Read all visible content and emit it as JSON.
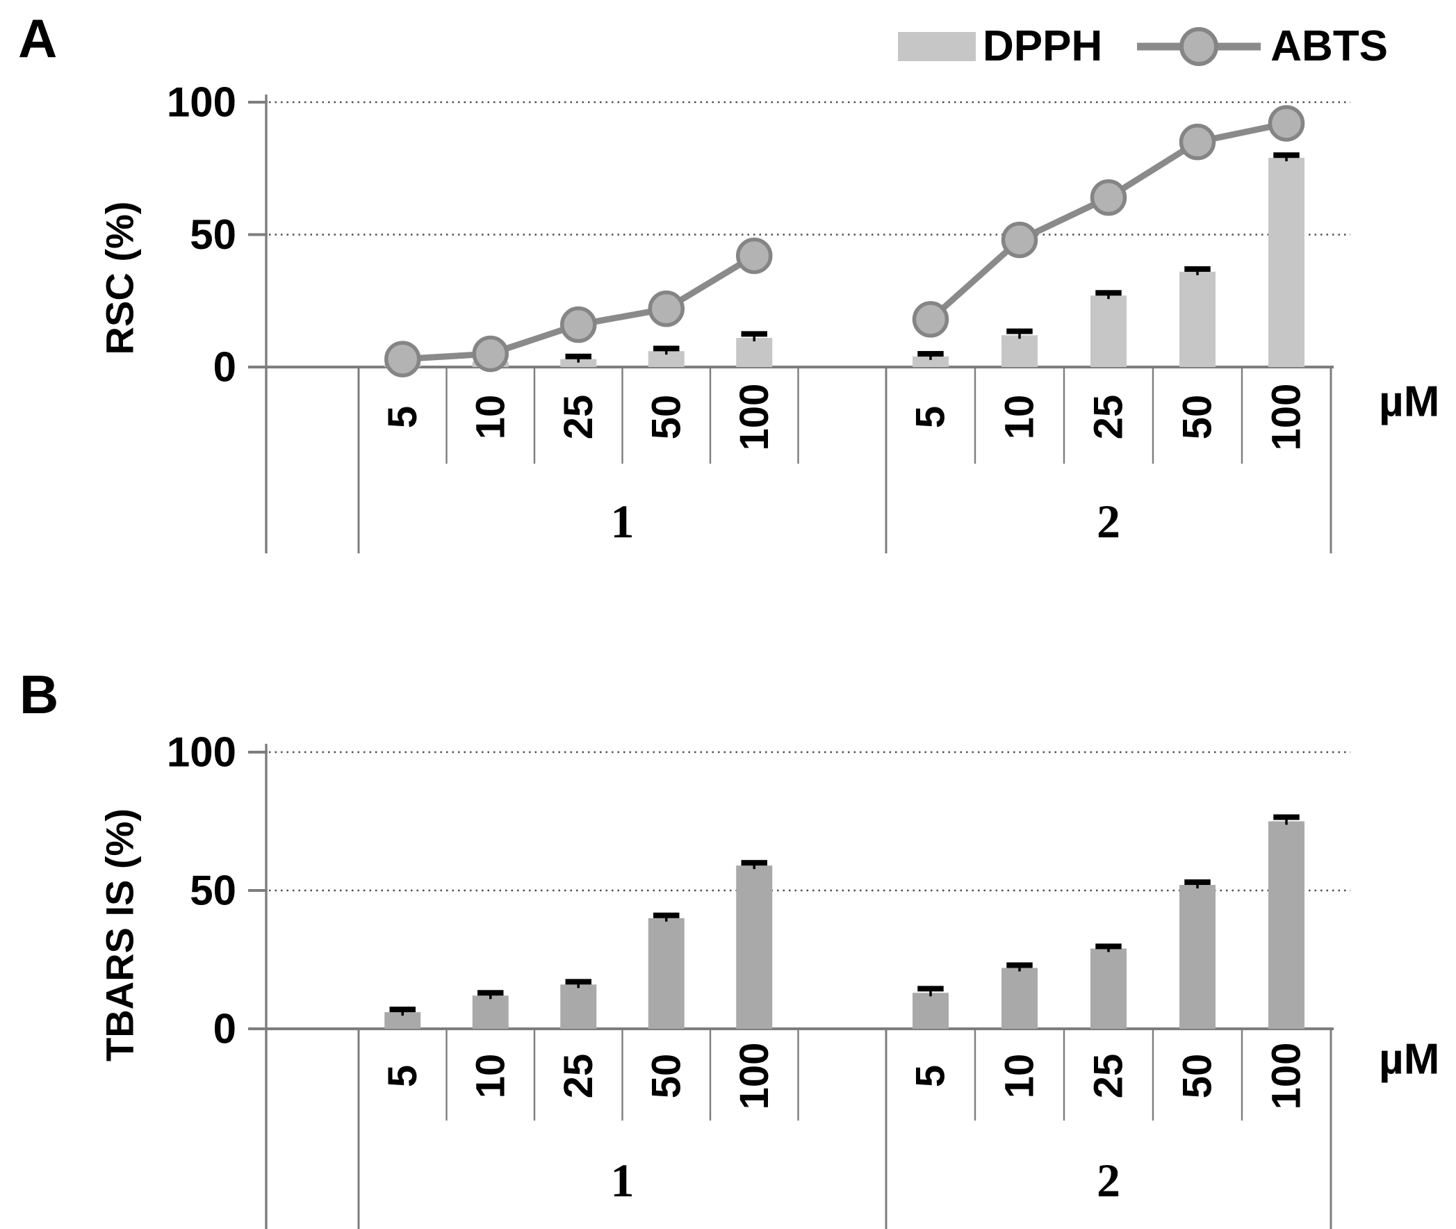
{
  "figure": {
    "panel_a_label": "A",
    "panel_b_label": "B"
  },
  "legend": {
    "items": [
      {
        "label": "DPPH",
        "glyph": "bar-swatch"
      },
      {
        "label": "ABTS",
        "glyph": "line-with-circle-marker"
      }
    ]
  },
  "colors": {
    "dpph_bar": "#c6c6c6",
    "tbars_bar": "#a9a9a9",
    "abts_line": "#8a8a8a",
    "abts_marker_fill": "#b3b3b3",
    "abts_marker_stroke": "#858585",
    "error_bar": "#000000",
    "axis": "#7d7d7d",
    "gridline": "#4d4d4d",
    "text": "#000000"
  },
  "chart_data": [
    {
      "type": "bar+line",
      "panel": "A",
      "title": "",
      "ylabel": "RSC (%)",
      "xlabel_unit": "µM",
      "ylim": [
        0,
        100
      ],
      "yticks": [
        0,
        50,
        100
      ],
      "gridlines": [
        50,
        100
      ],
      "grid_style": "dotted",
      "categories": [
        "5",
        "10",
        "25",
        "50",
        "100"
      ],
      "group_labels": [
        "1",
        "2"
      ],
      "legend_position": "top-right",
      "series": [
        {
          "name": "DPPH",
          "type": "bar",
          "groups": [
            [
              1,
              2,
              3,
              6,
              11
            ],
            [
              4,
              12,
              27,
              36,
              79
            ]
          ],
          "errors": [
            [
              0.5,
              0.5,
              1,
              1,
              1.5
            ],
            [
              1,
              1.5,
              1,
              1,
              1
            ]
          ]
        },
        {
          "name": "ABTS",
          "type": "line",
          "groups": [
            [
              3,
              5,
              16,
              22,
              42
            ],
            [
              18,
              48,
              64,
              85,
              92
            ]
          ]
        }
      ]
    },
    {
      "type": "bar",
      "panel": "B",
      "title": "",
      "ylabel": "TBARS IS (%)",
      "xlabel_unit": "µM",
      "ylim": [
        0,
        100
      ],
      "yticks": [
        0,
        50,
        100
      ],
      "gridlines": [
        50,
        100
      ],
      "grid_style": "dotted",
      "categories": [
        "5",
        "10",
        "25",
        "50",
        "100"
      ],
      "group_labels": [
        "1",
        "2"
      ],
      "series": [
        {
          "type": "bar",
          "groups": [
            [
              6,
              12,
              16,
              40,
              59
            ],
            [
              13,
              22,
              29,
              52,
              75
            ]
          ],
          "errors": [
            [
              1,
              1,
              1,
              1,
              1
            ],
            [
              1.5,
              1,
              0.8,
              1,
              1.5
            ]
          ]
        }
      ]
    }
  ]
}
